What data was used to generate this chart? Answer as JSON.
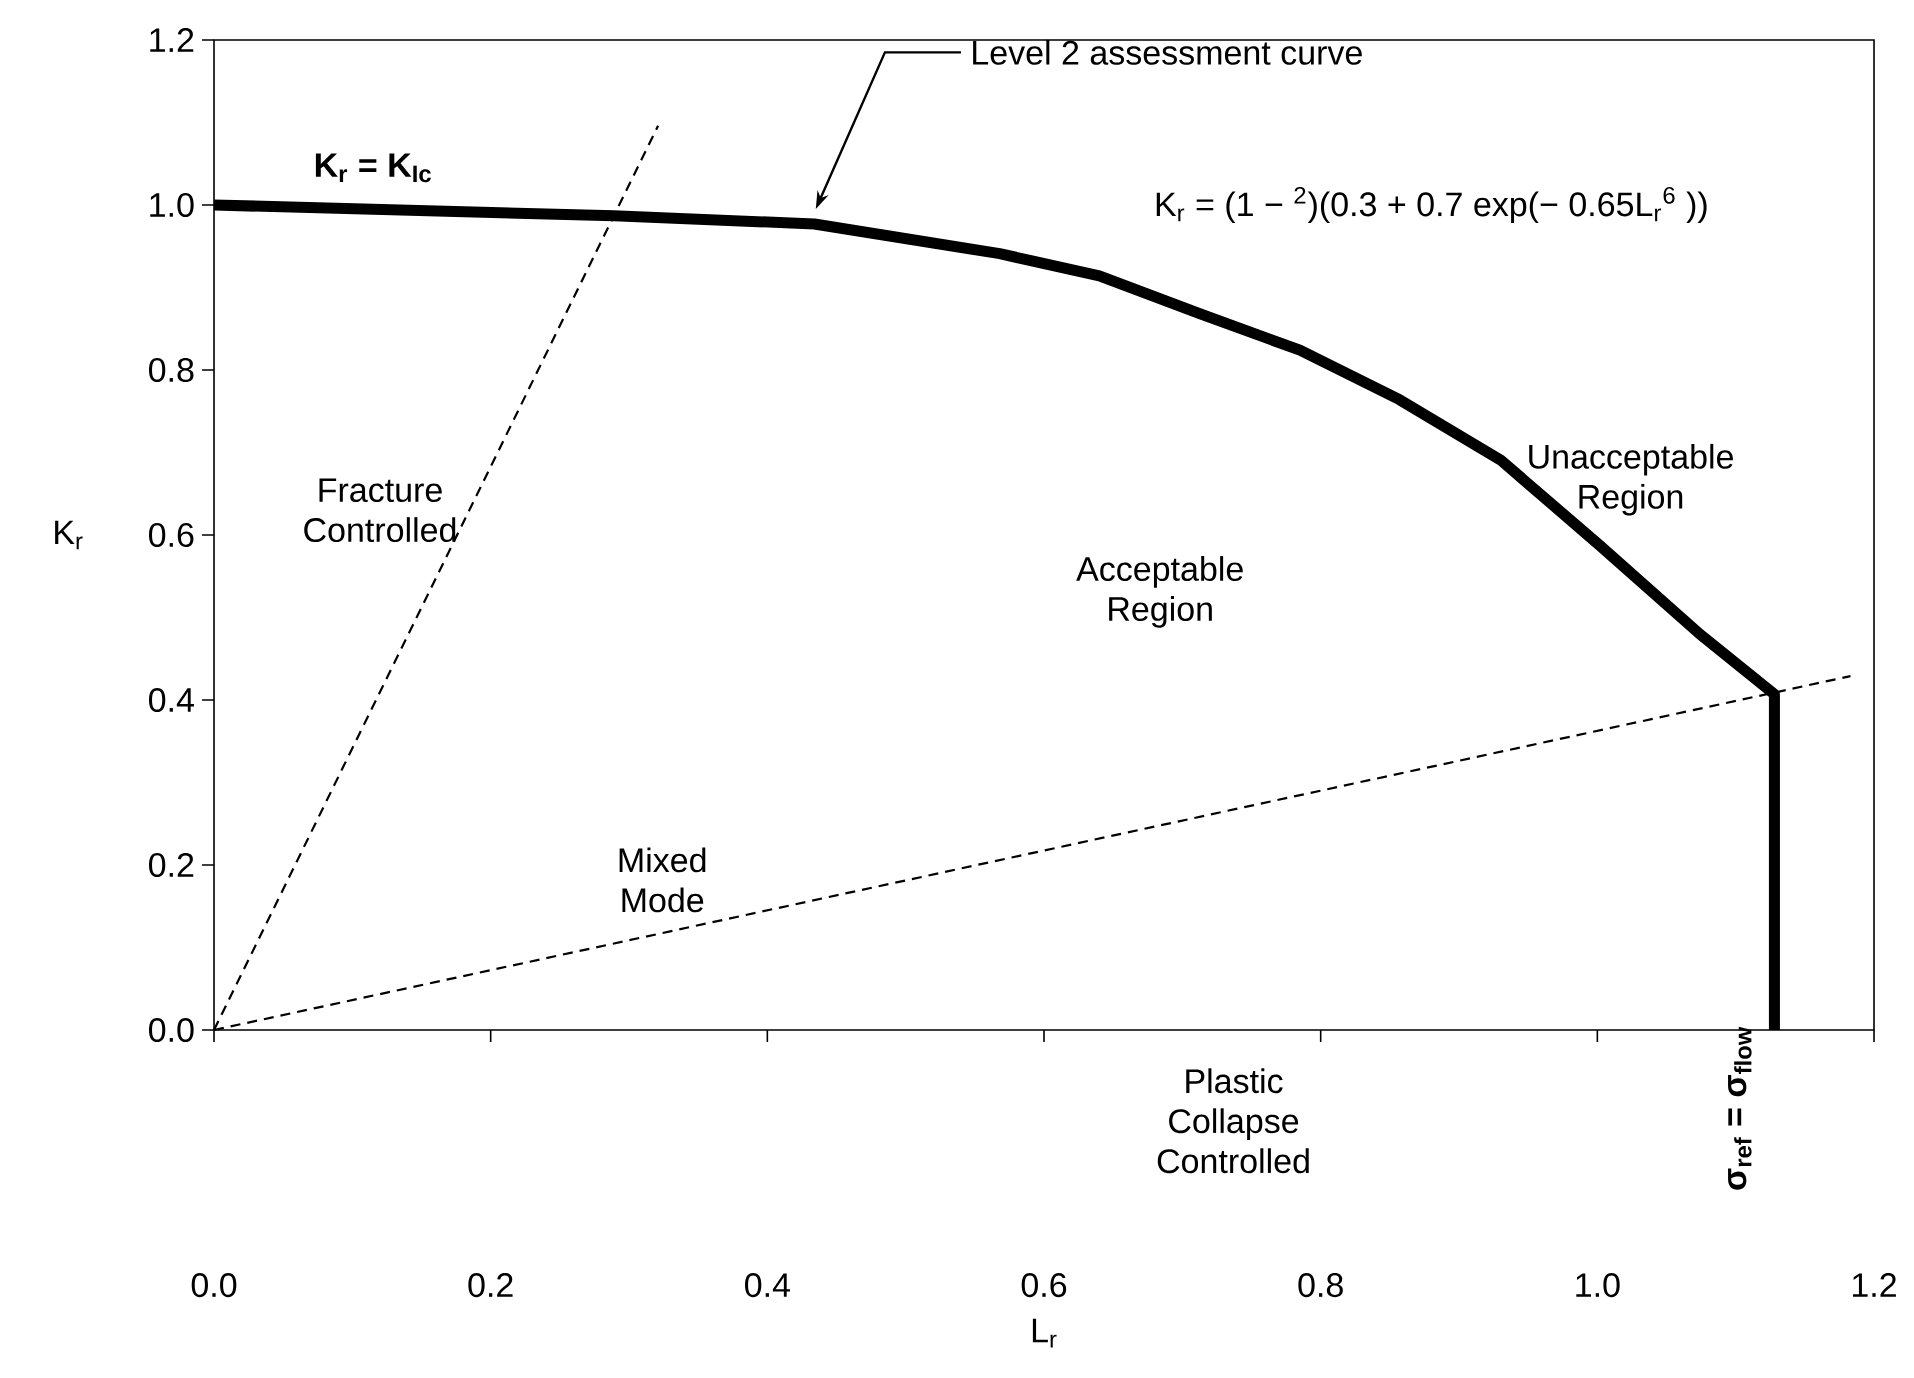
{
  "chart_data": {
    "type": "line",
    "xlabel": "L$_{r}$",
    "ylabel": "K$_{r}$",
    "xlim": [
      0,
      1.2
    ],
    "ylim": [
      0,
      1.2
    ],
    "xticks": [
      {
        "value": 0,
        "label": "0.0"
      },
      {
        "value": 0.2,
        "label": "0.2"
      },
      {
        "value": 0.4,
        "label": "0.4"
      },
      {
        "value": 0.6,
        "label": "0.6"
      },
      {
        "value": 0.8,
        "label": "0.8"
      },
      {
        "value": 1.0,
        "label": "1.0"
      },
      {
        "value": 1.2,
        "label": "1.2"
      }
    ],
    "yticks": [
      {
        "value": 0,
        "label": "0.0"
      },
      {
        "value": 0.2,
        "label": "0.2"
      },
      {
        "value": 0.4,
        "label": "0.4"
      },
      {
        "value": 0.6,
        "label": "0.6"
      },
      {
        "value": 0.8,
        "label": "0.8"
      },
      {
        "value": 1.0,
        "label": "1.0"
      },
      {
        "value": 1.2,
        "label": "1.2"
      }
    ],
    "grid": false,
    "marker": "none",
    "series": [
      {
        "color": "#000000",
        "line_style": "solid",
        "x": [
          0,
          0.289,
          0.434,
          0.568,
          0.64,
          0.713,
          0.785,
          0.857,
          0.93,
          1.002,
          1.074,
          1.128,
          1.128
        ],
        "values": [
          1.0,
          0.987,
          0.977,
          0.941,
          0.914,
          0.868,
          0.824,
          0.764,
          0.691,
          0.587,
          0.48,
          0.407,
          0
        ]
      },
      {
        "color": "#000000",
        "line_style": "dashed",
        "x": [
          0,
          0.321
        ],
        "values": [
          0,
          1.096
        ]
      },
      {
        "color": "#000000",
        "line_style": "dashed",
        "x": [
          0,
          1.183
        ],
        "values": [
          0,
          0.429
        ]
      }
    ],
    "annotations": [
      {
        "text": "Level 2 assessment curve",
        "x": 0.435,
        "y": 0.99
      },
      "K$_{r}$ = (1 −        $^{2}$)(0.3 + 0.7 exp(− 0.65L$_{r}$$^{6}$ ))",
      "K$_{r}$ = K$_{Ic}$",
      "Fracture Controlled",
      "Acceptable Region",
      "Unacceptable Region",
      "Mixed Mode",
      "Plastic Collapse Controlled",
      "σ$_{ref}$ = σ$_{flow}$"
    ]
  }
}
